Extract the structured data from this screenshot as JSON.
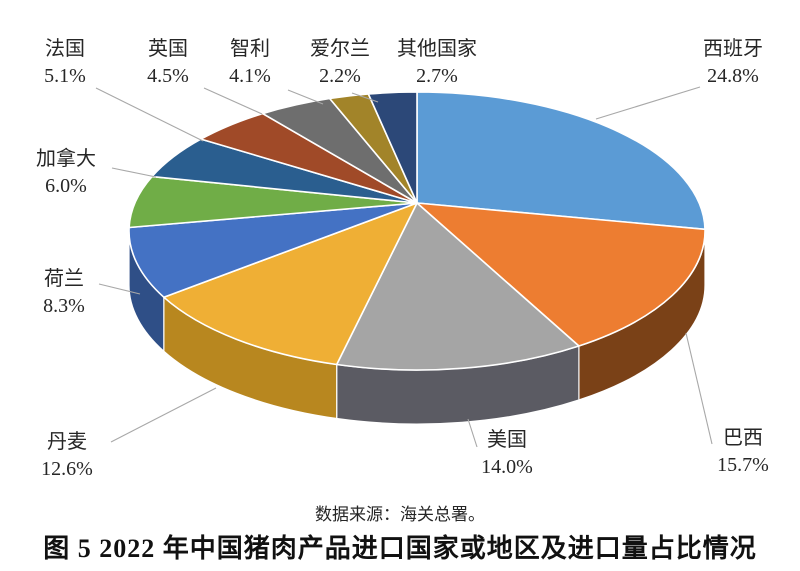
{
  "chart_data": {
    "type": "pie",
    "style": "3d-pie",
    "title": "图 5 2022 年中国猪肉产品进口国家或地区及进口量占比情况",
    "source": "数据来源：海关总署。",
    "unit": "percent of import volume",
    "start_angle_deg": 0,
    "direction": "clockwise",
    "label_style": "callout labels with leader lines, name above percent",
    "leader_color": "#a8a8a8",
    "slices": [
      {
        "id": "spain",
        "name": "西班牙",
        "value": 24.8,
        "pct_label": "24.8%",
        "color": "#5B9BD5",
        "side_color": "#3E6F9E"
      },
      {
        "id": "brazil",
        "name": "巴西",
        "value": 15.7,
        "pct_label": "15.7%",
        "color": "#ED7D31",
        "side_color": "#7A4117"
      },
      {
        "id": "usa",
        "name": "美国",
        "value": 14.0,
        "pct_label": "14.0%",
        "color": "#A5A5A5",
        "side_color": "#5B5B63"
      },
      {
        "id": "denmark",
        "name": "丹麦",
        "value": 12.6,
        "pct_label": "12.6%",
        "color": "#EFAF35",
        "side_color": "#B8871F"
      },
      {
        "id": "netherlands",
        "name": "荷兰",
        "value": 8.3,
        "pct_label": "8.3%",
        "color": "#4472C4",
        "side_color": "#2F4F87"
      },
      {
        "id": "canada",
        "name": "加拿大",
        "value": 6.0,
        "pct_label": "6.0%",
        "color": "#70AD47",
        "side_color": "#4E7A31"
      },
      {
        "id": "france",
        "name": "法国",
        "value": 5.1,
        "pct_label": "5.1%",
        "color": "#2A5E8F",
        "side_color": "#1D4163"
      },
      {
        "id": "uk",
        "name": "英国",
        "value": 4.5,
        "pct_label": "4.5%",
        "color": "#A04A28",
        "side_color": "#6E3317"
      },
      {
        "id": "chile",
        "name": "智利",
        "value": 4.1,
        "pct_label": "4.1%",
        "color": "#6E6E6E",
        "side_color": "#4D4D4D"
      },
      {
        "id": "ireland",
        "name": "爱尔兰",
        "value": 2.2,
        "pct_label": "2.2%",
        "color": "#A28429",
        "side_color": "#6E5D15"
      },
      {
        "id": "other",
        "name": "其他国家",
        "value": 2.7,
        "pct_label": "2.7%",
        "color": "#2C4878",
        "side_color": "#1E3253"
      }
    ]
  }
}
